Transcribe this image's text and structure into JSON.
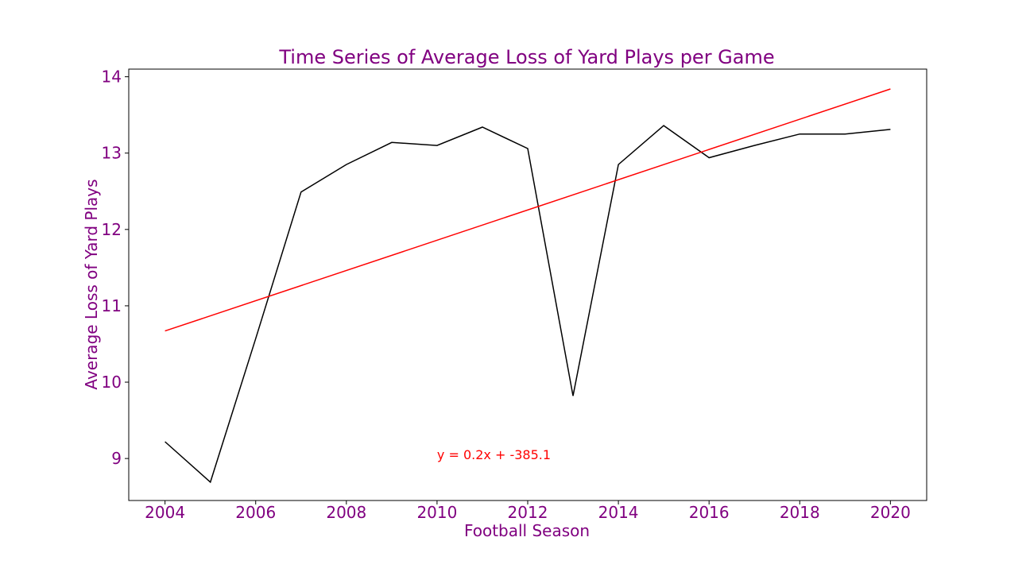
{
  "chart_data": {
    "type": "line",
    "title": "Time Series of Average Loss of Yard Plays per Game",
    "xlabel": "Football Season",
    "ylabel": "Average Loss of Yard Plays",
    "xlim": [
      2003.2,
      2020.8
    ],
    "ylim": [
      8.45,
      14.1
    ],
    "xticks": [
      2004,
      2006,
      2008,
      2010,
      2012,
      2014,
      2016,
      2018,
      2020
    ],
    "yticks": [
      9,
      10,
      11,
      12,
      13,
      14
    ],
    "grid": false,
    "series": [
      {
        "x": [
          2004,
          2005,
          2006,
          2007,
          2008,
          2009,
          2010,
          2011,
          2012,
          2013,
          2014,
          2015,
          2016,
          2017,
          2018,
          2019,
          2020
        ],
        "values": [
          9.22,
          8.69,
          10.57,
          12.49,
          12.85,
          13.14,
          13.1,
          13.34,
          13.06,
          9.82,
          12.85,
          13.36,
          12.94,
          13.1,
          13.25,
          13.25,
          13.31
        ],
        "color": "#000000"
      },
      {
        "x": [
          2004,
          2020
        ],
        "values": [
          10.67,
          13.84
        ],
        "color": "#ff0000"
      }
    ],
    "annotation": {
      "text": "y = 0.2x + -385.1",
      "x": 2010,
      "y": 9.0,
      "color": "#ff0000"
    },
    "colors": {
      "text": "#800080",
      "data_line": "#000000",
      "trend_line": "#ff0000"
    }
  }
}
